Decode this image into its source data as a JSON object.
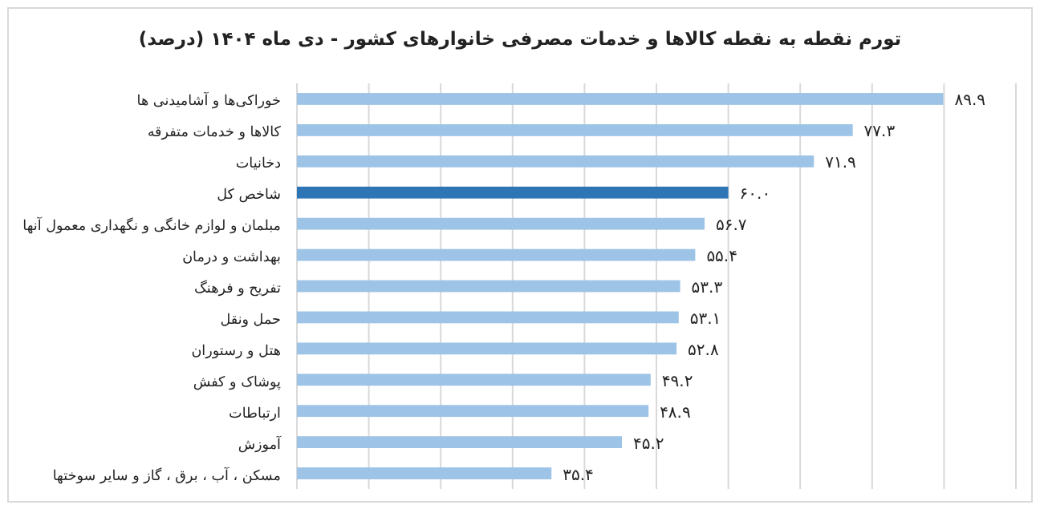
{
  "chart_data": {
    "type": "bar",
    "orientation": "horizontal",
    "title": "تورم نقطه به نقطه کالاها و خدمات مصرفی خانوارهای کشور - دی ماه ۱۴۰۴ (درصد)",
    "categories": [
      "خوراکی‌ها و آشامیدنی ها",
      "کالاها و خدمات متفرقه",
      "دخانیات",
      "شاخص کل",
      "مبلمان و لوازم خانگی و نگهداری معمول آنها",
      "بهداشت و درمان",
      "تفریح و فرهنگ",
      "حمل ونقل",
      "هتل و رستوران",
      "پوشاک و کفش",
      "ارتباطات",
      "آموزش",
      "مسکن ، آب ، برق ، گاز و سایر سوختها"
    ],
    "values": [
      89.9,
      77.3,
      71.9,
      60.0,
      56.7,
      55.4,
      53.3,
      53.1,
      52.8,
      49.2,
      48.9,
      45.2,
      35.4
    ],
    "value_labels": [
      "۸۹.۹",
      "۷۷.۳",
      "۷۱.۹",
      "۶۰.۰",
      "۵۶.۷",
      "۵۵.۴",
      "۵۳.۳",
      "۵۳.۱",
      "۵۲.۸",
      "۴۹.۲",
      "۴۸.۹",
      "۴۵.۲",
      "۳۵.۴"
    ],
    "colors": [
      "#9dc3e6",
      "#9dc3e6",
      "#9dc3e6",
      "#2e75b6",
      "#9dc3e6",
      "#9dc3e6",
      "#9dc3e6",
      "#9dc3e6",
      "#9dc3e6",
      "#9dc3e6",
      "#9dc3e6",
      "#9dc3e6",
      "#9dc3e6"
    ],
    "xlim": [
      0,
      100
    ],
    "xticks": [
      {
        "value": 0,
        "label": null
      },
      {
        "value": 10,
        "label": null
      },
      {
        "value": 20,
        "label": null
      },
      {
        "value": 30,
        "label": null
      },
      {
        "value": 40,
        "label": null
      },
      {
        "value": 50,
        "label": null
      },
      {
        "value": 60,
        "label": null
      },
      {
        "value": 70,
        "label": null
      },
      {
        "value": 80,
        "label": null
      },
      {
        "value": 90,
        "label": null
      },
      {
        "value": 100,
        "label": null
      }
    ],
    "grid": "x",
    "tick_labels": "y"
  }
}
